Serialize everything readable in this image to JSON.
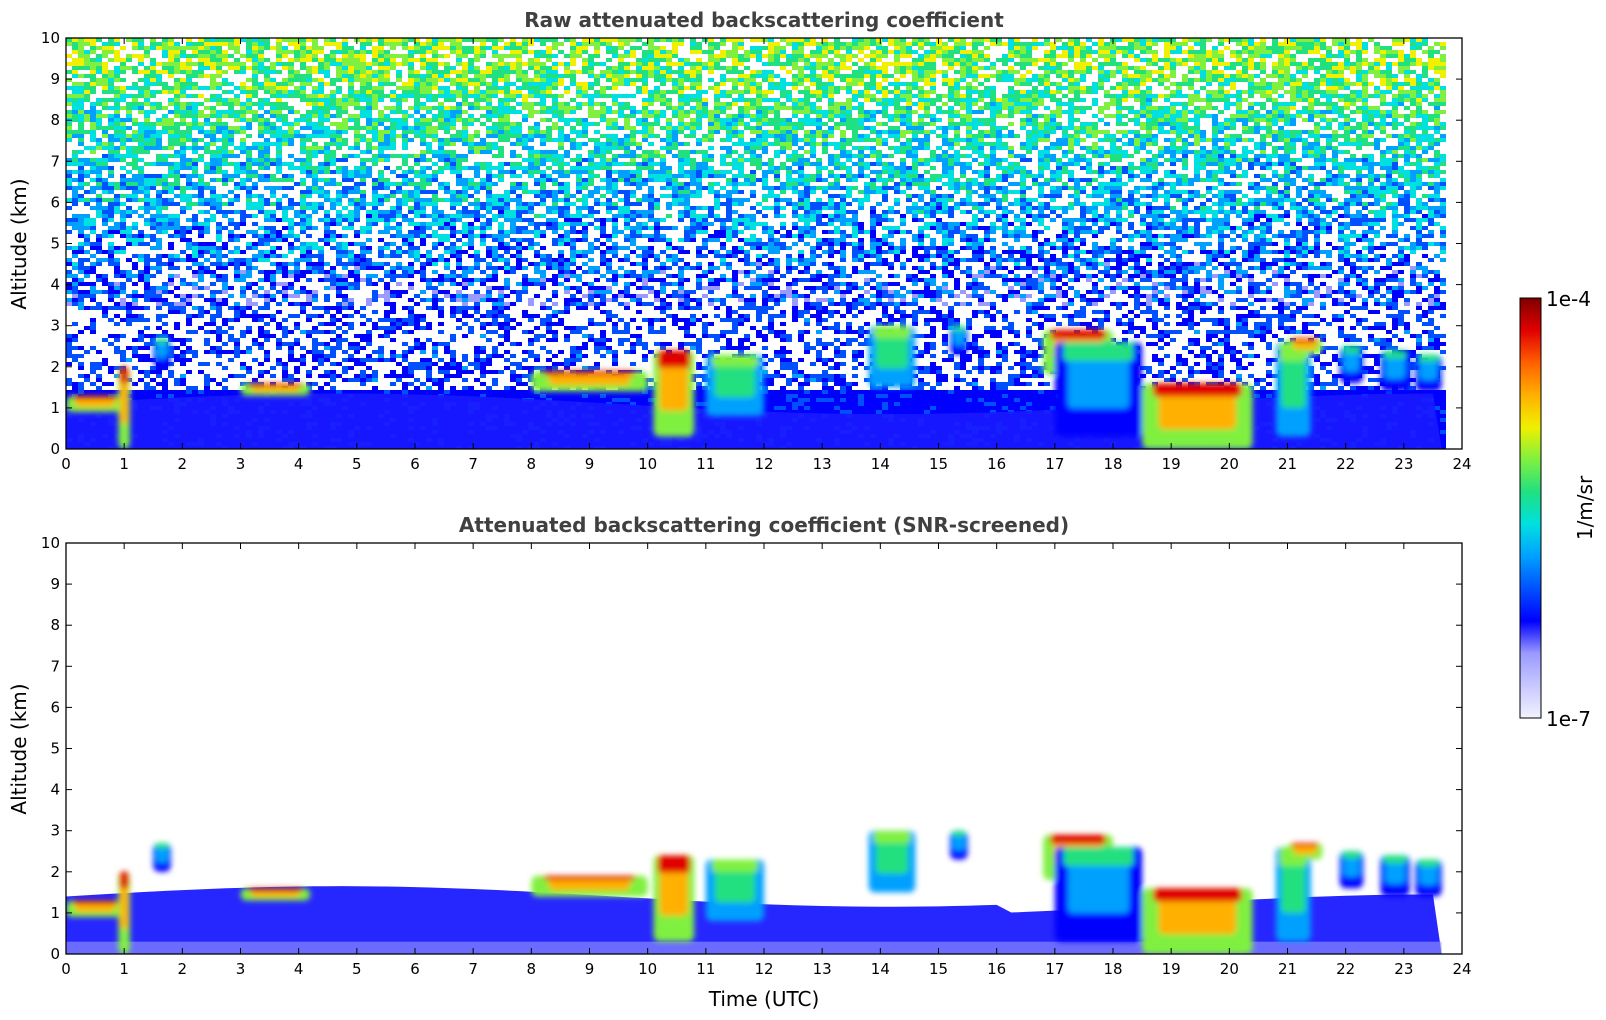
{
  "chart_data": [
    {
      "type": "heatmap",
      "title": "Raw attenuated backscattering coefficient",
      "xlabel": "",
      "ylabel": "Altitude (km)",
      "xlim": [
        0,
        24
      ],
      "ylim": [
        0,
        10
      ],
      "xticks": [
        "0",
        "1",
        "2",
        "3",
        "4",
        "5",
        "6",
        "7",
        "8",
        "9",
        "10",
        "11",
        "12",
        "13",
        "14",
        "15",
        "16",
        "17",
        "18",
        "19",
        "20",
        "21",
        "22",
        "23",
        "24"
      ],
      "yticks": [
        "0",
        "1",
        "2",
        "3",
        "4",
        "5",
        "6",
        "7",
        "8",
        "9",
        "10"
      ],
      "data_end_time": 23.65,
      "background": "noisy-high",
      "features": [
        {
          "x": [
            0.0,
            1.0
          ],
          "y": [
            0.9,
            1.3
          ],
          "level": "high"
        },
        {
          "x": [
            0.9,
            1.1
          ],
          "y": [
            0.0,
            2.0
          ],
          "level": "high"
        },
        {
          "x": [
            1.5,
            1.8
          ],
          "y": [
            2.0,
            2.7
          ],
          "level": "mid"
        },
        {
          "x": [
            3.0,
            4.2
          ],
          "y": [
            1.3,
            1.6
          ],
          "level": "high"
        },
        {
          "x": [
            8.0,
            10.0
          ],
          "y": [
            1.4,
            1.9
          ],
          "level": "high"
        },
        {
          "x": [
            10.1,
            10.8
          ],
          "y": [
            0.3,
            2.4
          ],
          "level": "high"
        },
        {
          "x": [
            11.0,
            12.0
          ],
          "y": [
            0.8,
            2.3
          ],
          "level": "mid-high"
        },
        {
          "x": [
            13.8,
            14.6
          ],
          "y": [
            1.5,
            3.0
          ],
          "level": "mid-high"
        },
        {
          "x": [
            15.2,
            15.5
          ],
          "y": [
            2.3,
            3.0
          ],
          "level": "mid"
        },
        {
          "x": [
            16.8,
            18.0
          ],
          "y": [
            1.8,
            2.9
          ],
          "level": "high"
        },
        {
          "x": [
            17.0,
            18.5
          ],
          "y": [
            0.3,
            2.6
          ],
          "level": "mid"
        },
        {
          "x": [
            18.5,
            20.4
          ],
          "y": [
            0.0,
            1.6
          ],
          "level": "high"
        },
        {
          "x": [
            20.8,
            21.4
          ],
          "y": [
            0.3,
            2.6
          ],
          "level": "mid-high"
        },
        {
          "x": [
            21.0,
            21.6
          ],
          "y": [
            2.3,
            2.7
          ],
          "level": "high"
        },
        {
          "x": [
            21.9,
            22.3
          ],
          "y": [
            1.6,
            2.5
          ],
          "level": "mid"
        },
        {
          "x": [
            22.6,
            23.1
          ],
          "y": [
            1.4,
            2.4
          ],
          "level": "mid"
        },
        {
          "x": [
            23.2,
            23.65
          ],
          "y": [
            1.4,
            2.3
          ],
          "level": "mid"
        }
      ]
    },
    {
      "type": "heatmap",
      "title": "Attenuated backscattering coefficient (SNR-screened)",
      "xlabel": "Time (UTC)",
      "ylabel": "Altitude (km)",
      "xlim": [
        0,
        24
      ],
      "ylim": [
        0,
        10
      ],
      "xticks": [
        "0",
        "1",
        "2",
        "3",
        "4",
        "5",
        "6",
        "7",
        "8",
        "9",
        "10",
        "11",
        "12",
        "13",
        "14",
        "15",
        "16",
        "17",
        "18",
        "19",
        "20",
        "21",
        "22",
        "23",
        "24"
      ],
      "yticks": [
        "0",
        "1",
        "2",
        "3",
        "4",
        "5",
        "6",
        "7",
        "8",
        "9",
        "10"
      ],
      "data_end_time": 23.65,
      "background": "screened",
      "features": [
        {
          "x": [
            0.0,
            1.0
          ],
          "y": [
            0.9,
            1.3
          ],
          "level": "high"
        },
        {
          "x": [
            0.9,
            1.1
          ],
          "y": [
            0.0,
            2.0
          ],
          "level": "high"
        },
        {
          "x": [
            1.5,
            1.8
          ],
          "y": [
            2.0,
            2.7
          ],
          "level": "mid"
        },
        {
          "x": [
            3.0,
            4.2
          ],
          "y": [
            1.3,
            1.6
          ],
          "level": "high"
        },
        {
          "x": [
            8.0,
            10.0
          ],
          "y": [
            1.4,
            1.9
          ],
          "level": "high"
        },
        {
          "x": [
            10.1,
            10.8
          ],
          "y": [
            0.3,
            2.4
          ],
          "level": "high"
        },
        {
          "x": [
            11.0,
            12.0
          ],
          "y": [
            0.8,
            2.3
          ],
          "level": "mid-high"
        },
        {
          "x": [
            13.8,
            14.6
          ],
          "y": [
            1.5,
            3.0
          ],
          "level": "mid-high"
        },
        {
          "x": [
            15.2,
            15.5
          ],
          "y": [
            2.3,
            3.0
          ],
          "level": "mid"
        },
        {
          "x": [
            16.8,
            18.0
          ],
          "y": [
            1.8,
            2.9
          ],
          "level": "high"
        },
        {
          "x": [
            17.0,
            18.5
          ],
          "y": [
            0.3,
            2.6
          ],
          "level": "mid"
        },
        {
          "x": [
            18.5,
            20.4
          ],
          "y": [
            0.0,
            1.6
          ],
          "level": "high"
        },
        {
          "x": [
            20.8,
            21.4
          ],
          "y": [
            0.3,
            2.6
          ],
          "level": "mid-high"
        },
        {
          "x": [
            21.0,
            21.6
          ],
          "y": [
            2.3,
            2.7
          ],
          "level": "high"
        },
        {
          "x": [
            21.9,
            22.3
          ],
          "y": [
            1.6,
            2.5
          ],
          "level": "mid"
        },
        {
          "x": [
            22.6,
            23.1
          ],
          "y": [
            1.4,
            2.4
          ],
          "level": "mid"
        },
        {
          "x": [
            23.2,
            23.65
          ],
          "y": [
            1.4,
            2.3
          ],
          "level": "mid"
        }
      ]
    }
  ],
  "colorbar": {
    "label": "1/m/sr",
    "max_label": "1e-4",
    "min_label": "1e-7",
    "scale": "log",
    "colormap": [
      "#f2f2ff",
      "#c8c8ff",
      "#9a9aff",
      "#0000ff",
      "#0050ff",
      "#00a0ff",
      "#00e0e0",
      "#20e080",
      "#80f040",
      "#f0f000",
      "#ffb000",
      "#ff6000",
      "#e00000",
      "#800000"
    ]
  },
  "colors": {
    "low_boundary_layer": "#1a1aff",
    "clear_air": "#ffffff"
  }
}
